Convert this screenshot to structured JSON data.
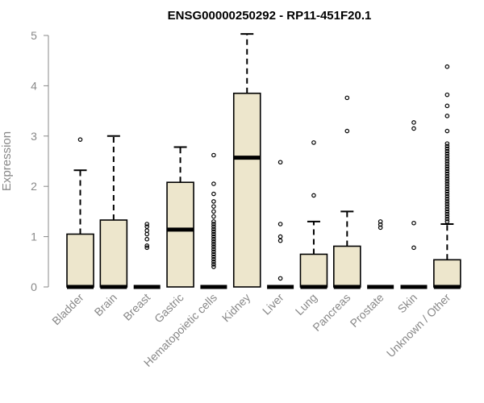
{
  "chart_data": {
    "type": "boxplot",
    "title": "ENSG00000250292 - RP11-451F20.1",
    "xlabel": "",
    "ylabel": "Expression",
    "ylim": [
      0,
      5
    ],
    "yticks": [
      0,
      1,
      2,
      3,
      4,
      5
    ],
    "grid": false,
    "legend": "none",
    "box_fill": "#ede6cc",
    "series": [
      {
        "category": "Bladder",
        "min": 0,
        "q1": 0,
        "median": 0,
        "q3": 1.05,
        "whisker_high": 2.32,
        "outliers": [
          2.93
        ]
      },
      {
        "category": "Brain",
        "min": 0,
        "q1": 0,
        "median": 0,
        "q3": 1.33,
        "whisker_high": 3.0,
        "outliers": []
      },
      {
        "category": "Breast",
        "min": 0,
        "q1": 0,
        "median": 0,
        "q3": 0,
        "whisker_high": 0,
        "outliers": [
          0.78,
          0.82,
          0.95,
          1.05,
          1.12,
          1.2,
          1.25
        ]
      },
      {
        "category": "Gastric",
        "min": 0,
        "q1": 0,
        "median": 1.14,
        "q3": 2.08,
        "whisker_high": 2.78,
        "outliers": []
      },
      {
        "category": "Hematopoietic cells",
        "min": 0,
        "q1": 0,
        "median": 0,
        "q3": 0,
        "whisker_high": 0,
        "outliers": [
          0.4,
          0.45,
          0.5,
          0.55,
          0.6,
          0.65,
          0.7,
          0.75,
          0.8,
          0.85,
          0.9,
          0.95,
          1.0,
          1.05,
          1.1,
          1.15,
          1.2,
          1.25,
          1.3,
          1.4,
          1.5,
          1.6,
          1.7,
          1.85,
          2.05,
          2.62
        ]
      },
      {
        "category": "Kidney",
        "min": 0,
        "q1": 0,
        "median": 2.57,
        "q3": 3.85,
        "whisker_high": 5.03,
        "outliers": []
      },
      {
        "category": "Liver",
        "min": 0,
        "q1": 0,
        "median": 0,
        "q3": 0,
        "whisker_high": 0,
        "outliers": [
          0.17,
          0.92,
          1.0,
          1.25,
          2.48
        ]
      },
      {
        "category": "Lung",
        "min": 0,
        "q1": 0,
        "median": 0,
        "q3": 0.65,
        "whisker_high": 1.3,
        "outliers": [
          1.82,
          2.87
        ]
      },
      {
        "category": "Pancreas",
        "min": 0,
        "q1": 0,
        "median": 0,
        "q3": 0.81,
        "whisker_high": 1.5,
        "outliers": [
          3.1,
          3.76
        ]
      },
      {
        "category": "Prostate",
        "min": 0,
        "q1": 0,
        "median": 0,
        "q3": 0,
        "whisker_high": 0,
        "outliers": [
          1.18,
          1.24,
          1.3
        ]
      },
      {
        "category": "Skin",
        "min": 0,
        "q1": 0,
        "median": 0,
        "q3": 0,
        "whisker_high": 0,
        "outliers": [
          0.78,
          1.27,
          3.15,
          3.27
        ]
      },
      {
        "category": "Unknown / Other",
        "min": 0,
        "q1": 0,
        "median": 0,
        "q3": 0.54,
        "whisker_high": 1.25,
        "outliers": [
          1.3,
          1.35,
          1.4,
          1.45,
          1.5,
          1.55,
          1.6,
          1.65,
          1.7,
          1.75,
          1.8,
          1.85,
          1.9,
          1.95,
          2.0,
          2.05,
          2.1,
          2.15,
          2.2,
          2.25,
          2.3,
          2.35,
          2.4,
          2.45,
          2.5,
          2.55,
          2.6,
          2.65,
          2.7,
          2.75,
          2.8,
          2.85,
          3.1,
          3.4,
          3.6,
          3.82,
          4.38
        ]
      }
    ]
  }
}
